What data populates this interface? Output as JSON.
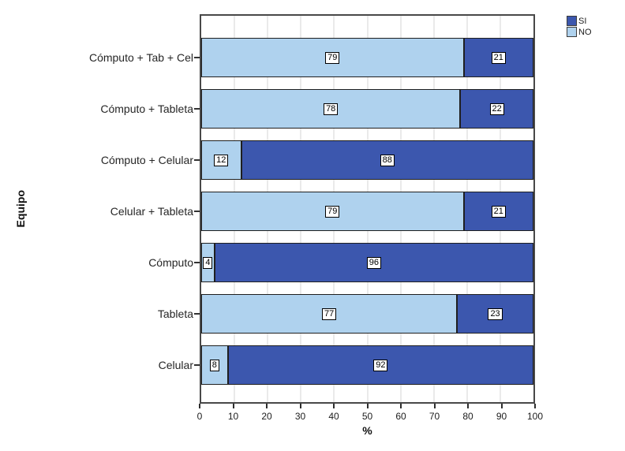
{
  "chart_data": {
    "type": "bar",
    "orientation": "horizontal",
    "stacked": true,
    "xlabel": "%",
    "ylabel": "Equipo",
    "xlim": [
      0,
      100
    ],
    "xticks": [
      0,
      10,
      20,
      30,
      40,
      50,
      60,
      70,
      80,
      90,
      100
    ],
    "grid": "vertical",
    "legend_position": "top-right",
    "categories": [
      "Cómputo + Tab + Cel",
      "Cómputo + Tableta",
      "Cómputo + Celular",
      "Celular + Tableta",
      "Cómputo",
      "Tableta",
      "Celular"
    ],
    "series": [
      {
        "name": "SI",
        "color": "#3C57AE",
        "values": [
          21,
          22,
          88,
          21,
          96,
          23,
          92
        ]
      },
      {
        "name": "NO",
        "color": "#AFD2EE",
        "values": [
          79,
          78,
          12,
          79,
          4,
          77,
          8
        ]
      }
    ],
    "stack_order": [
      "NO",
      "SI"
    ],
    "colors": {
      "grid": "#d4d4d4",
      "bar_border": "#1f1f1f",
      "plot_border": "#484848",
      "value_label_bg": "#ffffff",
      "value_label_border": "#000000"
    }
  }
}
